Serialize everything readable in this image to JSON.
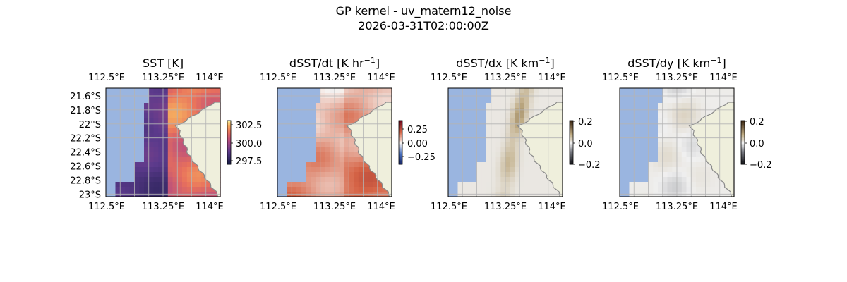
{
  "figure": {
    "title_line1": "GP kernel - uv_matern12_noise",
    "title_line2": "2026-03-31T02:00:00Z"
  },
  "colors": {
    "ocean": "#9ab5e0",
    "land": "#efefdc",
    "grid": "#b4b4b4",
    "coast": "#8a8a8a"
  },
  "chart_data": [
    {
      "type": "heatmap",
      "title": "SST [K]",
      "xlabel": "",
      "ylabel": "",
      "x_ticks": [
        "112.5°E",
        "113.25°E",
        "114°E"
      ],
      "y_ticks": [
        "21.6°S",
        "21.8°S",
        "22°S",
        "22.2°S",
        "22.4°S",
        "22.6°S",
        "22.8°S",
        "23°S"
      ],
      "colorbar": {
        "cmap": "thermal",
        "ticks": [
          "302.5",
          "300.0",
          "297.5"
        ],
        "vmin": 296.9,
        "vmax": 303.6
      },
      "grid": true,
      "show_y_ticks": true
    },
    {
      "type": "heatmap",
      "title": "dSST/dt [K hr⁻¹]",
      "xlabel": "",
      "ylabel": "",
      "x_ticks": [
        "112.5°E",
        "113.25°E",
        "114°E"
      ],
      "y_ticks": [],
      "colorbar": {
        "cmap": "diverging-blue-red",
        "ticks": [
          "0.25",
          "0.00",
          "−0.25"
        ],
        "vmin": -0.45,
        "vmax": 0.45
      },
      "grid": true,
      "show_y_ticks": false
    },
    {
      "type": "heatmap",
      "title": "dSST/dx [K km⁻¹]",
      "xlabel": "",
      "ylabel": "",
      "x_ticks": [
        "112.5°E",
        "113.25°E",
        "114°E"
      ],
      "y_ticks": [],
      "colorbar": {
        "cmap": "diverging-gray-brown",
        "ticks": [
          "0.2",
          "0.0",
          "−0.2"
        ],
        "vmin": -0.2,
        "vmax": 0.2
      },
      "grid": true,
      "show_y_ticks": false
    },
    {
      "type": "heatmap",
      "title": "dSST/dy [K km⁻¹]",
      "xlabel": "",
      "ylabel": "",
      "x_ticks": [
        "112.5°E",
        "113.25°E",
        "114°E"
      ],
      "y_ticks": [],
      "colorbar": {
        "cmap": "diverging-gray-brown",
        "ticks": [
          "0.2",
          "0.0",
          "−0.2"
        ],
        "vmin": -0.2,
        "vmax": 0.2
      },
      "grid": true,
      "show_y_ticks": false
    }
  ]
}
